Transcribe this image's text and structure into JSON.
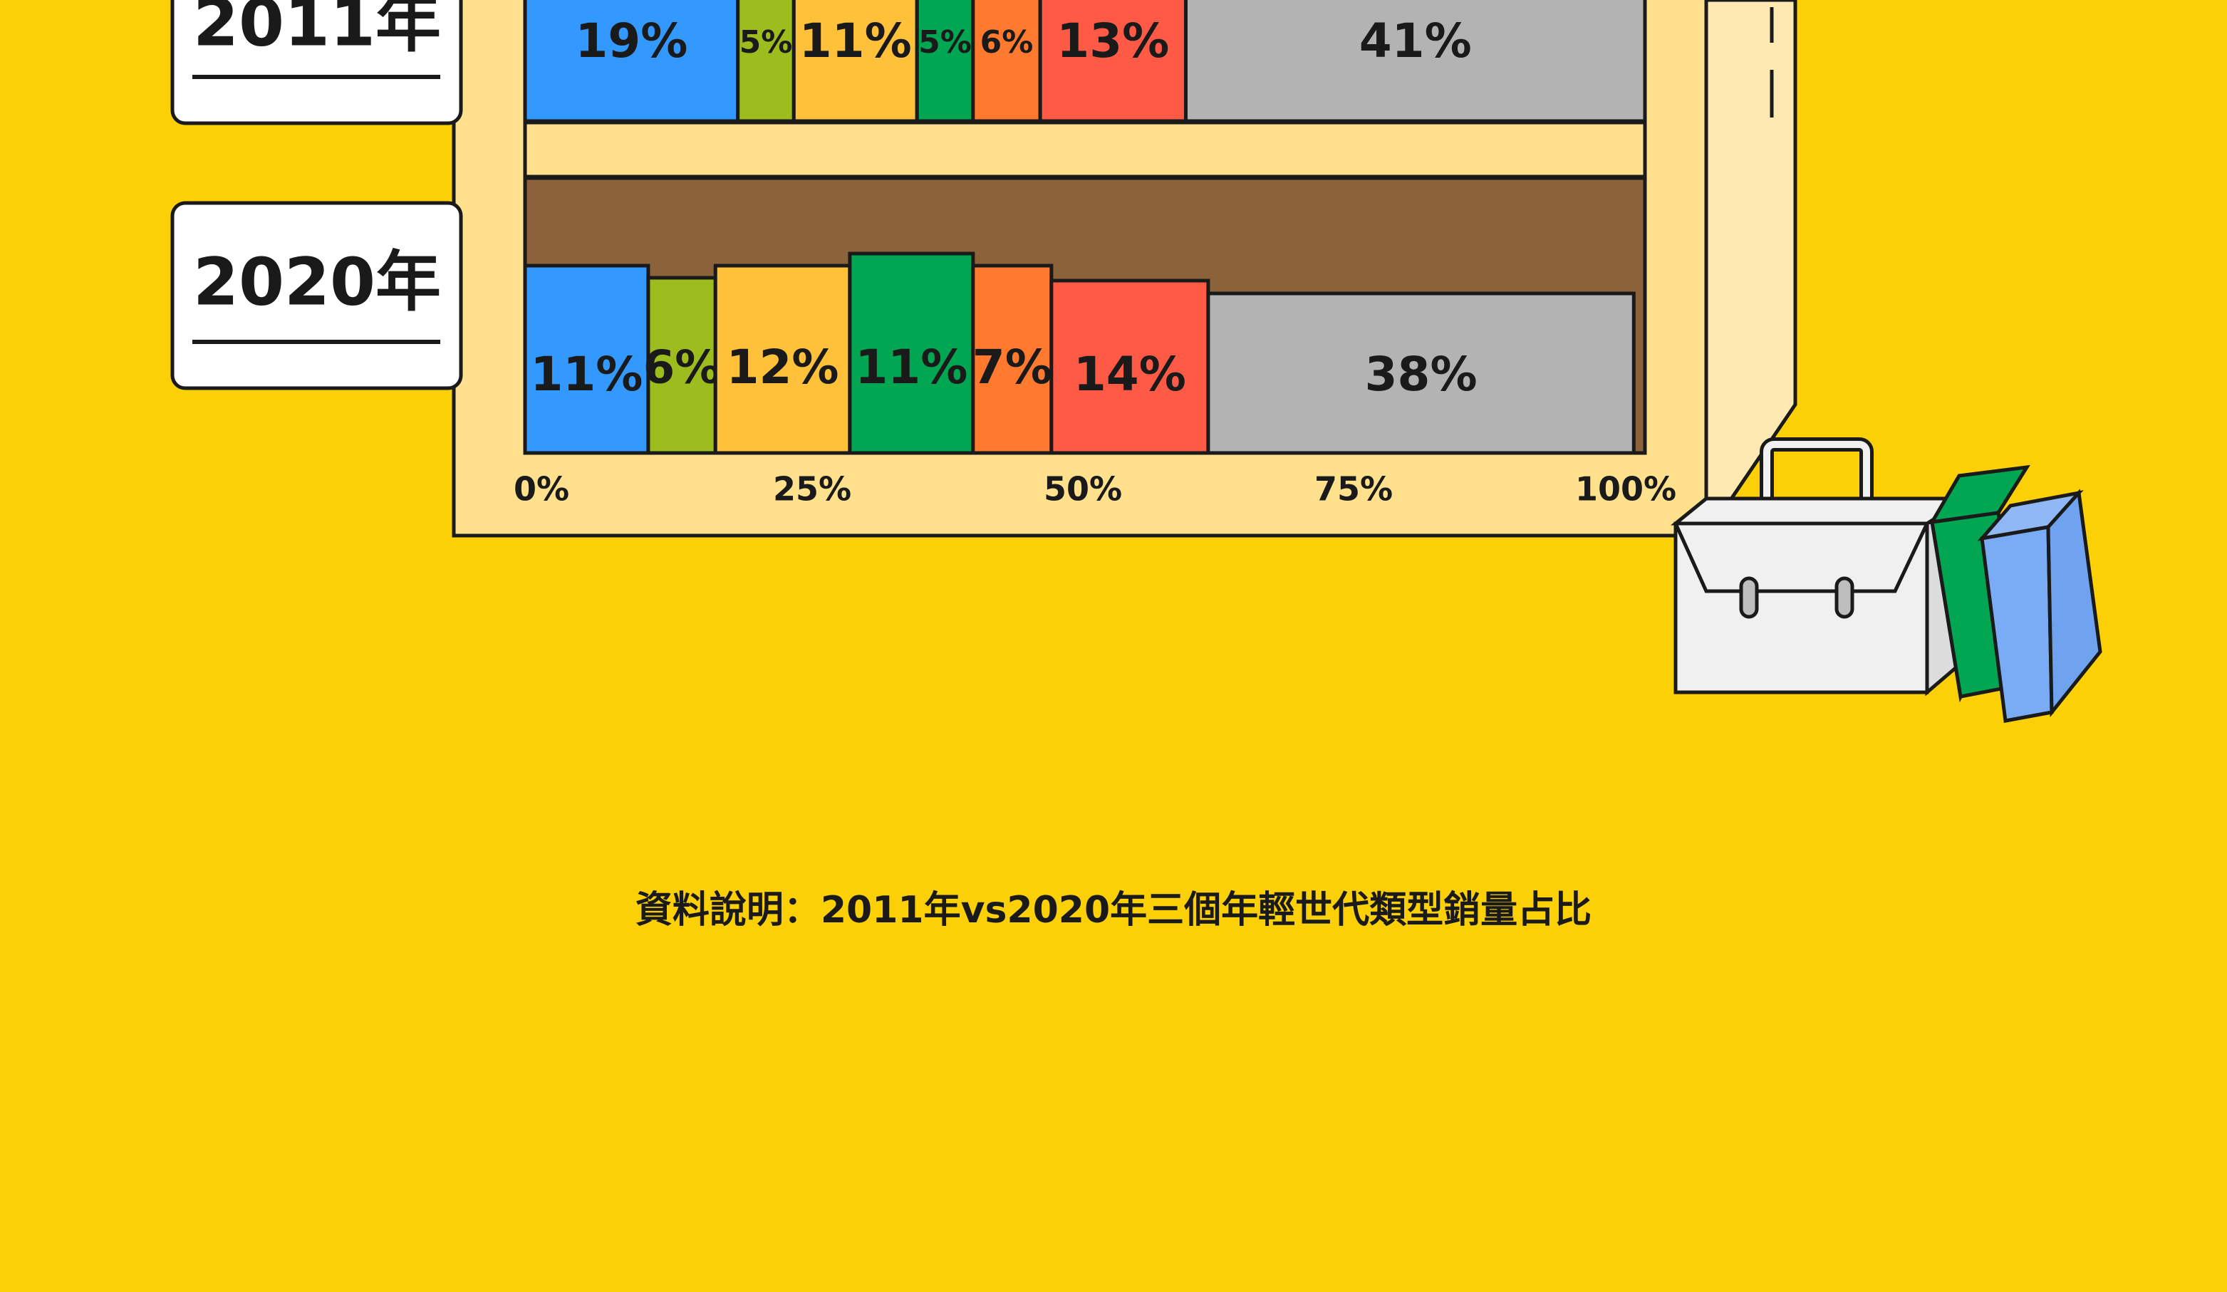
{
  "caption": "資料說明：2011年vs2020年三個年輕世代類型銷量占比",
  "chart_data": {
    "type": "bar",
    "orientation": "horizontal-stacked-100",
    "categories": [
      "2011年",
      "2020年"
    ],
    "series": [
      {
        "color": "#3399FF",
        "values": [
          19,
          11
        ]
      },
      {
        "color": "#9DBD1E",
        "values": [
          5,
          6
        ]
      },
      {
        "color": "#FFC03A",
        "values": [
          11,
          12
        ]
      },
      {
        "color": "#00A651",
        "values": [
          5,
          11
        ]
      },
      {
        "color": "#FF7A2E",
        "values": [
          6,
          7
        ]
      },
      {
        "color": "#FF5A45",
        "values": [
          13,
          14
        ]
      },
      {
        "color": "#B3B3B3",
        "values": [
          41,
          38
        ]
      }
    ],
    "data_labels": [
      [
        "19%",
        "5%",
        "11%",
        "5%",
        "6%",
        "13%",
        "41%"
      ],
      [
        "11%",
        "6%",
        "12%",
        "11%",
        "7%",
        "14%",
        "38%"
      ]
    ],
    "x_ticks": [
      "0%",
      "25%",
      "50%",
      "75%",
      "100%"
    ],
    "xlim": [
      0,
      100
    ],
    "grid": false,
    "legend": "none"
  }
}
